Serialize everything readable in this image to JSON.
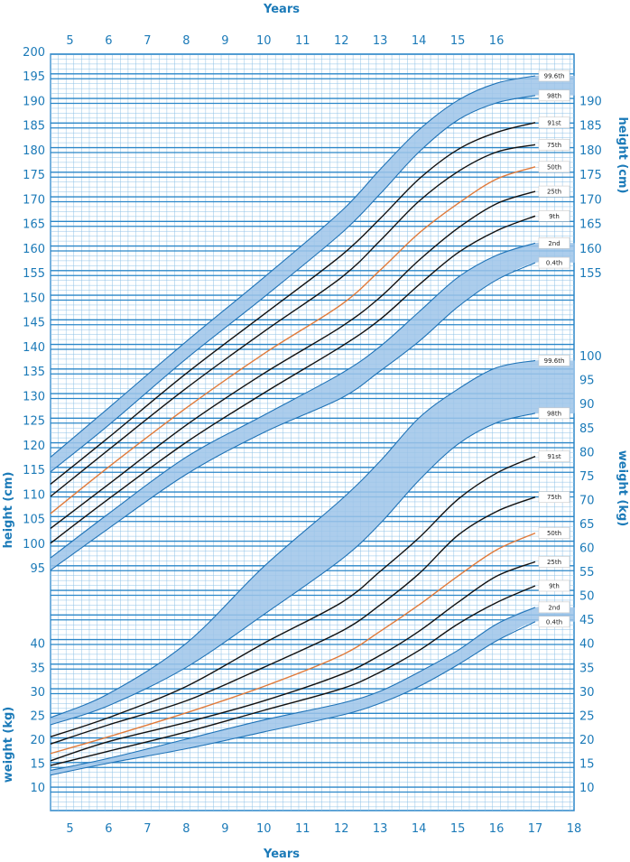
{
  "chart_data": {
    "type": "line",
    "title": "",
    "top_axis_title": "Years",
    "bottom_axis_title": "Years",
    "x": {
      "min": 4.5,
      "max": 18,
      "top_ticks": [
        "5",
        "6",
        "7",
        "8",
        "9",
        "10",
        "11",
        "12",
        "13",
        "14",
        "15",
        "16"
      ],
      "bottom_ticks": [
        "5",
        "6",
        "7",
        "8",
        "9",
        "10",
        "11",
        "12",
        "13",
        "14",
        "15",
        "16",
        "17",
        "18"
      ]
    },
    "height_axis": {
      "label": "height (cm)",
      "min": 95,
      "max": 200,
      "step": 5,
      "left_ticks": [
        "95",
        "100",
        "105",
        "110",
        "115",
        "120",
        "125",
        "130",
        "135",
        "140",
        "145",
        "150",
        "155",
        "160",
        "165",
        "170",
        "175",
        "180",
        "185",
        "190",
        "195",
        "200"
      ],
      "right_ticks": [
        "155",
        "160",
        "165",
        "170",
        "175",
        "180",
        "185",
        "190"
      ]
    },
    "weight_axis": {
      "label": "weight (kg)",
      "min": 10,
      "max": 100,
      "left_ticks": [
        "10",
        "15",
        "20",
        "25",
        "30",
        "35",
        "40"
      ],
      "right_ticks": [
        "10",
        "15",
        "20",
        "25",
        "30",
        "35",
        "40",
        "45",
        "50",
        "55",
        "60",
        "65",
        "70",
        "75",
        "80",
        "85",
        "90",
        "95",
        "100"
      ]
    },
    "height_centiles": [
      {
        "name": "99.6th",
        "band": true,
        "x": [
          4.5,
          6,
          8,
          10,
          12,
          13,
          14,
          15,
          16,
          17
        ],
        "y": [
          117.5,
          127.5,
          141,
          154,
          167.5,
          176,
          184,
          190,
          193.5,
          195
        ]
      },
      {
        "name": "98th",
        "band": true,
        "x": [
          4.5,
          6,
          8,
          10,
          12,
          13,
          14,
          15,
          16,
          17
        ],
        "y": [
          114.5,
          124,
          137.5,
          150,
          163,
          171,
          179.5,
          186,
          189.5,
          191
        ]
      },
      {
        "name": "91st",
        "x": [
          4.5,
          6,
          8,
          10,
          12,
          13,
          14,
          15,
          16,
          17
        ],
        "y": [
          112,
          121.5,
          134.5,
          146.5,
          158.5,
          166,
          174,
          180,
          183.5,
          185.5
        ]
      },
      {
        "name": "75th",
        "x": [
          4.5,
          6,
          8,
          10,
          12,
          13,
          14,
          15,
          16,
          17
        ],
        "y": [
          109.5,
          119,
          131.5,
          143,
          154,
          161.5,
          169.5,
          175.5,
          179.5,
          181
        ]
      },
      {
        "name": "50th",
        "highlight": true,
        "x": [
          4.5,
          6,
          8,
          10,
          12,
          13,
          14,
          15,
          16,
          17
        ],
        "y": [
          106,
          115.5,
          127.5,
          138.5,
          148.5,
          155.5,
          163,
          169,
          174,
          176.5
        ]
      },
      {
        "name": "25th",
        "x": [
          4.5,
          6,
          8,
          10,
          12,
          13,
          14,
          15,
          16,
          17
        ],
        "y": [
          103,
          112,
          124,
          134.5,
          144,
          150,
          157.5,
          164,
          169,
          171.5
        ]
      },
      {
        "name": "9th",
        "x": [
          4.5,
          6,
          8,
          10,
          12,
          13,
          14,
          15,
          16,
          17
        ],
        "y": [
          100,
          109,
          120.5,
          130.5,
          140,
          145.5,
          152.5,
          159,
          163.5,
          166.5
        ]
      },
      {
        "name": "2nd",
        "band": true,
        "x": [
          4.5,
          6,
          8,
          10,
          12,
          13,
          14,
          15,
          16,
          17
        ],
        "y": [
          97,
          106,
          117.5,
          126,
          134.5,
          140,
          147,
          154,
          158.5,
          161
        ]
      },
      {
        "name": "0.4th",
        "band": true,
        "x": [
          4.5,
          6,
          8,
          10,
          12,
          13,
          14,
          15,
          16,
          17
        ],
        "y": [
          94.5,
          103,
          114,
          122.5,
          129.5,
          135,
          141,
          148,
          153.5,
          157
        ]
      }
    ],
    "weight_centiles": [
      {
        "name": "99.6th",
        "band": true,
        "x": [
          4.5,
          6,
          8,
          10,
          12,
          13,
          14,
          15,
          16,
          17
        ],
        "y": [
          24.5,
          29.5,
          40,
          56,
          70,
          78,
          87,
          93,
          97.5,
          99
        ]
      },
      {
        "name": "98th",
        "band": true,
        "x": [
          4.5,
          6,
          8,
          10,
          12,
          13,
          14,
          15,
          16,
          17
        ],
        "y": [
          23,
          27,
          35,
          46,
          57.5,
          65,
          74,
          81.5,
          86,
          88
        ]
      },
      {
        "name": "91st",
        "x": [
          4.5,
          6,
          8,
          10,
          12,
          13,
          14,
          15,
          16,
          17
        ],
        "y": [
          20.5,
          24.5,
          31,
          40,
          48.5,
          55,
          62,
          70,
          75.5,
          79
        ]
      },
      {
        "name": "75th",
        "x": [
          4.5,
          6,
          8,
          10,
          12,
          13,
          14,
          15,
          16,
          17
        ],
        "y": [
          19,
          23,
          28,
          35,
          42.5,
          48,
          54.5,
          62.5,
          67.5,
          70.5
        ]
      },
      {
        "name": "50th",
        "highlight": true,
        "x": [
          4.5,
          6,
          8,
          10,
          12,
          13,
          14,
          15,
          16,
          17
        ],
        "y": [
          17,
          20.5,
          25.5,
          31,
          37.5,
          42.5,
          48,
          54,
          59.5,
          63
        ]
      },
      {
        "name": "25th",
        "x": [
          4.5,
          6,
          8,
          10,
          12,
          13,
          14,
          15,
          16,
          17
        ],
        "y": [
          15.5,
          19.5,
          23.5,
          28,
          33.5,
          37.5,
          42.5,
          48.5,
          54,
          57
        ]
      },
      {
        "name": "9th",
        "x": [
          4.5,
          6,
          8,
          10,
          12,
          13,
          14,
          15,
          16,
          17
        ],
        "y": [
          14.5,
          17.5,
          21.5,
          26,
          30.5,
          34,
          38.5,
          44,
          48.5,
          52
        ]
      },
      {
        "name": "2nd",
        "band": true,
        "x": [
          4.5,
          6,
          8,
          10,
          12,
          13,
          14,
          15,
          16,
          17
        ],
        "y": [
          13.5,
          16,
          20,
          24,
          27.5,
          30,
          34,
          38.5,
          44,
          47.5
        ]
      },
      {
        "name": "0.4th",
        "band": true,
        "x": [
          4.5,
          6,
          8,
          10,
          12,
          13,
          14,
          15,
          16,
          17
        ],
        "y": [
          12.5,
          15,
          18,
          21.5,
          25,
          27.5,
          31,
          35.5,
          40.5,
          44.5
        ]
      }
    ],
    "grid": true,
    "colors": {
      "grid": "#2A86C8",
      "grid_minor": "#8CC0E6",
      "band": "#9EC4E9",
      "band_edge": "#1F73B7",
      "line": "#111111",
      "median": "#E07A3A",
      "text": "#1B7AB8"
    }
  }
}
